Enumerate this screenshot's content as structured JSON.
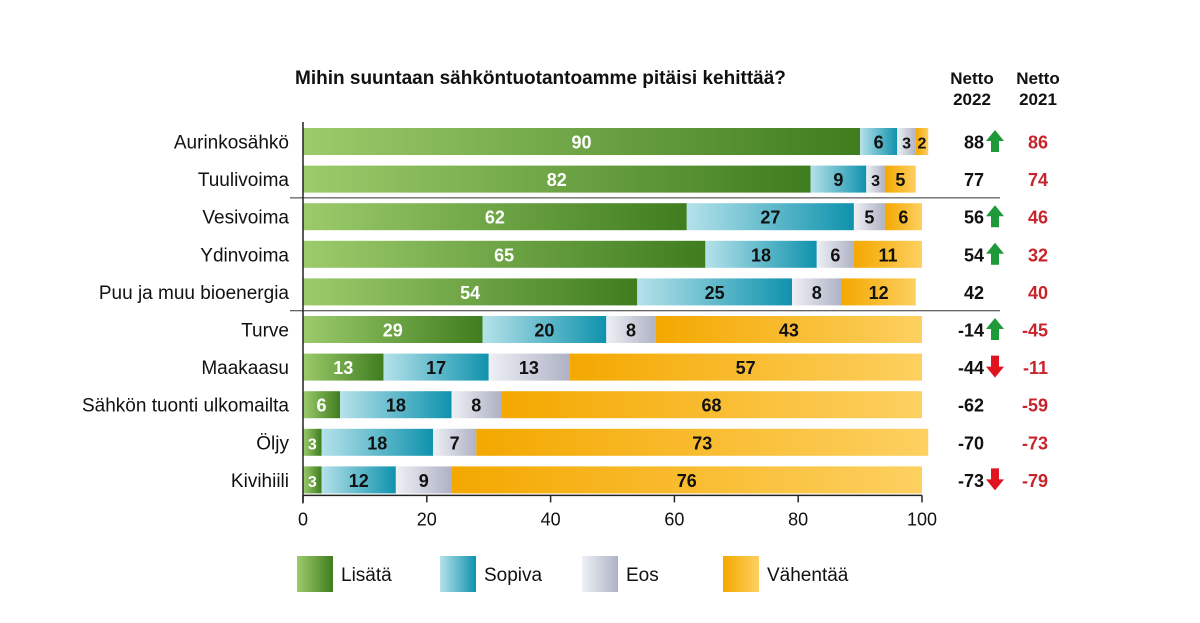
{
  "chart_data": {
    "type": "bar",
    "orientation": "horizontal",
    "stacked": true,
    "title": "Mihin suuntaan sähköntuotantoamme pitäisi kehittää?",
    "categories": [
      "Aurinkosähkö",
      "Tuulivoima",
      "Vesivoima",
      "Ydinvoima",
      "Puu ja muu bioenergia",
      "Turve",
      "Maakaasu",
      "Sähkön tuonti ulkomailta",
      "Öljy",
      "Kivihiili"
    ],
    "series": [
      {
        "name": "Lisätä",
        "values": [
          90,
          82,
          62,
          65,
          54,
          29,
          13,
          6,
          3,
          3
        ]
      },
      {
        "name": "Sopiva",
        "values": [
          6,
          9,
          27,
          18,
          25,
          20,
          17,
          18,
          18,
          12
        ]
      },
      {
        "name": "Eos",
        "values": [
          3,
          3,
          5,
          6,
          8,
          8,
          13,
          8,
          7,
          9
        ]
      },
      {
        "name": "Vähentää",
        "values": [
          2,
          5,
          6,
          11,
          12,
          43,
          57,
          68,
          73,
          76
        ]
      }
    ],
    "xlim": [
      0,
      100
    ],
    "xticks": [
      "0",
      "20",
      "40",
      "60",
      "80",
      "100"
    ],
    "legend_position": "bottom",
    "colors": {
      "Lisätä": "#4f8a2a",
      "Sopiva": "#2aa7bd",
      "Eos": "#c6c9d6",
      "Vähentää": "#f4a800"
    },
    "net_columns": [
      {
        "header": [
          "Netto",
          "2022"
        ],
        "values": [
          "88",
          "77",
          "56",
          "54",
          "42",
          "-14",
          "-44",
          "-62",
          "-70",
          "-73"
        ],
        "trend": [
          "up",
          "",
          "up",
          "up",
          "",
          "up",
          "down",
          "",
          "",
          "down"
        ]
      },
      {
        "header": [
          "Netto",
          "2021"
        ],
        "values": [
          "86",
          "74",
          "46",
          "32",
          "40",
          "-45",
          "-11",
          "-59",
          "-73",
          "-79"
        ]
      }
    ],
    "trend_colors": {
      "up": "#1e9a3a",
      "down": "#e0141e"
    }
  }
}
